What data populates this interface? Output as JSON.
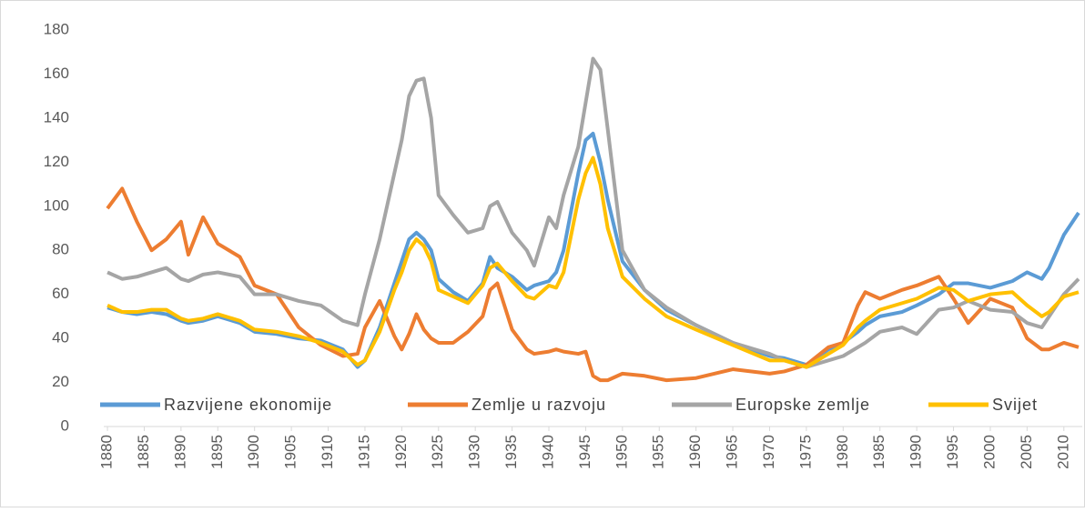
{
  "chart_data": {
    "type": "line",
    "x": [
      1880,
      1882,
      1884,
      1886,
      1888,
      1890,
      1891,
      1893,
      1895,
      1898,
      1900,
      1903,
      1906,
      1909,
      1912,
      1914,
      1915,
      1917,
      1919,
      1920,
      1921,
      1922,
      1923,
      1924,
      1925,
      1927,
      1929,
      1931,
      1932,
      1933,
      1935,
      1937,
      1938,
      1940,
      1941,
      1942,
      1944,
      1945,
      1946,
      1947,
      1948,
      1950,
      1953,
      1956,
      1960,
      1965,
      1970,
      1972,
      1975,
      1978,
      1980,
      1982,
      1983,
      1985,
      1988,
      1990,
      1993,
      1995,
      1997,
      2000,
      2003,
      2005,
      2007,
      2008,
      2010,
      2012
    ],
    "series": [
      {
        "name": "Razvijene ekonomije",
        "color": "#5b9bd5",
        "values": [
          54,
          52,
          51,
          52,
          51,
          48,
          47,
          48,
          50,
          47,
          43,
          42,
          40,
          39,
          35,
          27,
          30,
          45,
          65,
          75,
          85,
          88,
          85,
          80,
          67,
          61,
          57,
          65,
          77,
          72,
          68,
          62,
          64,
          66,
          70,
          80,
          115,
          130,
          133,
          120,
          103,
          75,
          62,
          53,
          46,
          38,
          32,
          31,
          28,
          35,
          38,
          43,
          46,
          50,
          52,
          55,
          60,
          65,
          65,
          63,
          66,
          70,
          67,
          72,
          87,
          97
        ]
      },
      {
        "name": "Zemlje u razvoju",
        "color": "#ed7d31",
        "values": [
          99,
          108,
          93,
          80,
          85,
          93,
          78,
          95,
          83,
          77,
          64,
          60,
          45,
          37,
          32,
          33,
          45,
          57,
          41,
          35,
          42,
          51,
          44,
          40,
          38,
          38,
          43,
          50,
          62,
          65,
          44,
          35,
          33,
          34,
          35,
          34,
          33,
          34,
          23,
          21,
          21,
          24,
          23,
          21,
          22,
          26,
          24,
          25,
          28,
          36,
          38,
          55,
          61,
          58,
          62,
          64,
          68,
          58,
          47,
          58,
          54,
          40,
          35,
          35,
          38,
          36
        ]
      },
      {
        "name": "Europske zemlje",
        "color": "#a5a5a5",
        "values": [
          70,
          67,
          68,
          70,
          72,
          67,
          66,
          69,
          70,
          68,
          60,
          60,
          57,
          55,
          48,
          46,
          60,
          85,
          115,
          130,
          150,
          157,
          158,
          140,
          105,
          96,
          88,
          90,
          100,
          102,
          88,
          80,
          73,
          95,
          90,
          105,
          127,
          147,
          167,
          162,
          135,
          80,
          62,
          54,
          46,
          38,
          33,
          30,
          27,
          30,
          32,
          36,
          38,
          43,
          45,
          42,
          53,
          54,
          57,
          53,
          52,
          47,
          45,
          50,
          60,
          67
        ]
      },
      {
        "name": "Svijet",
        "color": "#ffc000",
        "values": [
          55,
          52,
          52,
          53,
          53,
          49,
          48,
          49,
          51,
          48,
          44,
          43,
          41,
          38,
          34,
          28,
          30,
          43,
          62,
          70,
          80,
          85,
          82,
          75,
          62,
          59,
          56,
          64,
          72,
          74,
          66,
          59,
          58,
          64,
          63,
          70,
          103,
          115,
          122,
          110,
          90,
          68,
          58,
          50,
          44,
          37,
          30,
          30,
          27,
          33,
          37,
          45,
          48,
          53,
          56,
          58,
          63,
          62,
          57,
          60,
          61,
          55,
          50,
          52,
          59,
          61
        ]
      }
    ],
    "xlim": [
      1879.5,
      2012.5
    ],
    "xticks": [
      1880,
      1885,
      1890,
      1895,
      1900,
      1905,
      1910,
      1915,
      1920,
      1925,
      1930,
      1935,
      1940,
      1945,
      1950,
      1955,
      1960,
      1965,
      1970,
      1975,
      1980,
      1985,
      1990,
      1995,
      2000,
      2005,
      2010
    ],
    "ylim": [
      0,
      180
    ],
    "yticks": [
      0,
      20,
      40,
      60,
      80,
      100,
      120,
      140,
      160,
      180
    ],
    "legend": "bottom"
  }
}
